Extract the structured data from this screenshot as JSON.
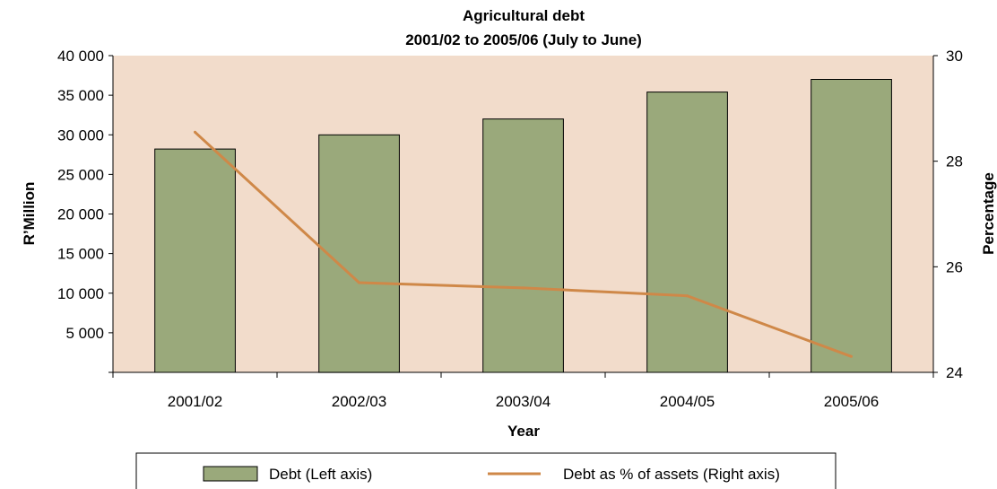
{
  "chart_data": {
    "type": "bar",
    "title": "Agricultural debt",
    "subtitle": "2001/02 to 2005/06 (July to June)",
    "xlabel": "Year",
    "ylabel": "R’Million",
    "y2label": "Percentage",
    "categories": [
      "2001/02",
      "2002/03",
      "2003/04",
      "2004/05",
      "2005/06"
    ],
    "ylim": [
      0,
      40000
    ],
    "y_ticks": [
      5000,
      10000,
      15000,
      20000,
      25000,
      30000,
      35000,
      40000
    ],
    "y_tick_labels": [
      "5 000",
      "10 000",
      "15 000",
      "20 000",
      "25 000",
      "30 000",
      "35 000",
      "40 000"
    ],
    "y2lim": [
      24,
      30
    ],
    "y2_ticks": [
      24,
      26,
      28,
      30
    ],
    "y2_tick_labels": [
      "24",
      "26",
      "28",
      "30"
    ],
    "grid": false,
    "legend_position": "bottom",
    "series": [
      {
        "name": "Debt (Left axis)",
        "type": "bar",
        "axis": "left",
        "values": [
          28200,
          30000,
          32000,
          35400,
          37000
        ]
      },
      {
        "name": "Debt as % of assets (Right axis)",
        "type": "line",
        "axis": "right",
        "values": [
          28.55,
          25.7,
          25.6,
          25.45,
          24.3
        ]
      }
    ],
    "colors": {
      "plot_background": "#f2dccb",
      "bar_fill": "#9aa97b",
      "bar_stroke": "#000000",
      "line": "#cf8848"
    }
  }
}
